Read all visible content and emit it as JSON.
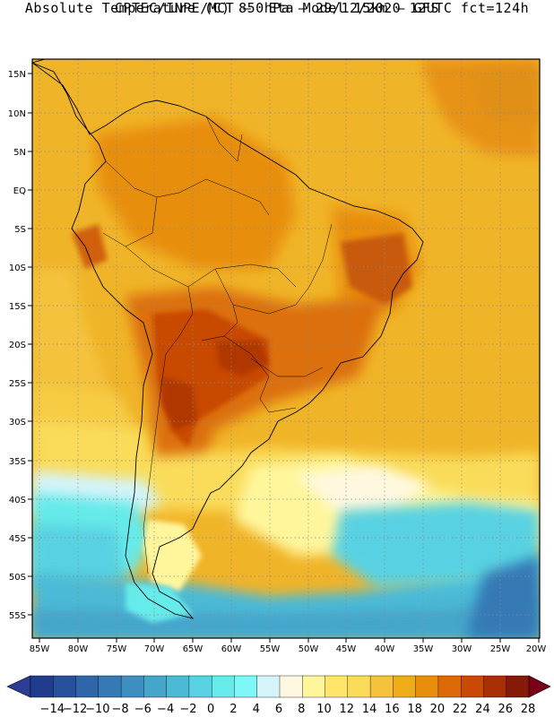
{
  "header": {
    "line1": "CPTEC/INPE/MCT –  Eta Model 15km – GFS",
    "line2": "Absolute Temperature (C) 850hPa – 29/12/2020 12UTC fct=124h"
  },
  "axes": {
    "lat_labels": [
      "15N",
      "10N",
      "5N",
      "EQ",
      "5S",
      "10S",
      "15S",
      "20S",
      "25S",
      "30S",
      "35S",
      "40S",
      "45S",
      "50S",
      "55S"
    ],
    "lon_labels": [
      "85W",
      "80W",
      "75W",
      "70W",
      "65W",
      "60W",
      "55W",
      "50W",
      "45W",
      "40W",
      "35W",
      "30W",
      "25W",
      "20W"
    ]
  },
  "colorbar": {
    "labels": [
      "-14",
      "-12",
      "-10",
      "-8",
      "-6",
      "-4",
      "-2",
      "0",
      "2",
      "4",
      "6",
      "8",
      "10",
      "12",
      "14",
      "16",
      "18",
      "20",
      "22",
      "24",
      "26",
      "28"
    ],
    "colors": [
      "#1f3d8c",
      "#27519c",
      "#2f66aa",
      "#3579b5",
      "#3d8fc2",
      "#45a6cc",
      "#4cbad6",
      "#58d2e2",
      "#66eaea",
      "#7ef7f7",
      "#d4f4fa",
      "#fff8e0",
      "#fff69c",
      "#ffe66a",
      "#fadc5a",
      "#f4c23c",
      "#eeac18",
      "#e88e0c",
      "#dc6a08",
      "#c84a04",
      "#a83004",
      "#861a08"
    ],
    "under_color": "#2a3c94",
    "over_color": "#780018"
  }
}
